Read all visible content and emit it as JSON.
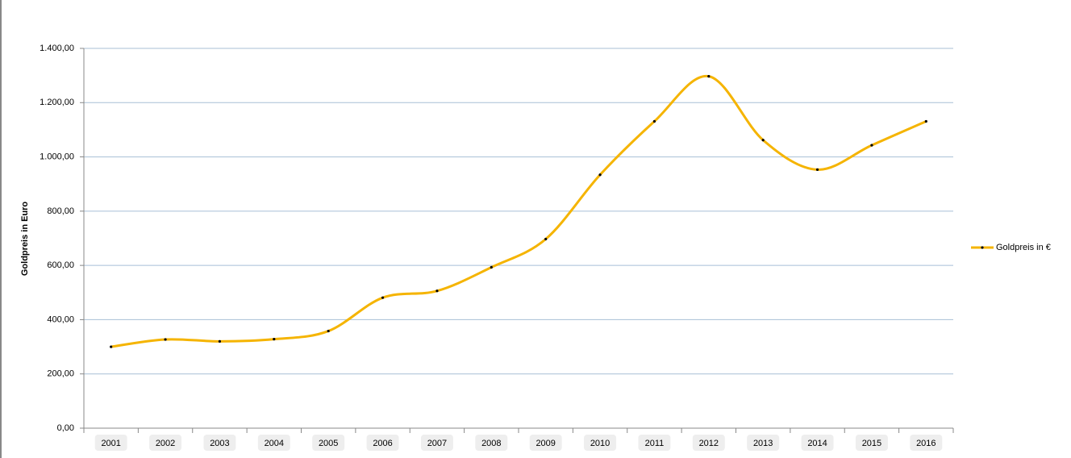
{
  "chart_data": {
    "type": "line",
    "y_label": "Goldpreis in Euro",
    "categories": [
      "2001",
      "2002",
      "2003",
      "2004",
      "2005",
      "2006",
      "2007",
      "2008",
      "2009",
      "2010",
      "2011",
      "2012",
      "2013",
      "2014",
      "2015",
      "2016"
    ],
    "series": [
      {
        "name": "Goldpreis in €",
        "color": "#f5b400",
        "values": [
          300,
          327,
          320,
          328,
          358,
          481,
          506,
          593,
          697,
          934,
          1131,
          1297,
          1062,
          953,
          1043,
          1131
        ]
      }
    ],
    "ylim": [
      0,
      1400
    ],
    "yticks": [
      {
        "value": 0,
        "label": "0,00"
      },
      {
        "value": 200,
        "label": "200,00"
      },
      {
        "value": 400,
        "label": "400,00"
      },
      {
        "value": 600,
        "label": "600,00"
      },
      {
        "value": 800,
        "label": "800,00"
      },
      {
        "value": 1000,
        "label": "1.000,00"
      },
      {
        "value": 1200,
        "label": "1.200,00"
      },
      {
        "value": 1400,
        "label": "1.400,00"
      }
    ],
    "grid": true,
    "legend": "right"
  }
}
